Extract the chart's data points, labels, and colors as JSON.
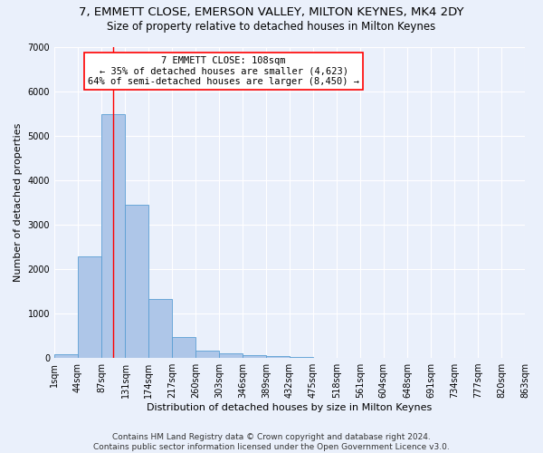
{
  "title": "7, EMMETT CLOSE, EMERSON VALLEY, MILTON KEYNES, MK4 2DY",
  "subtitle": "Size of property relative to detached houses in Milton Keynes",
  "xlabel": "Distribution of detached houses by size in Milton Keynes",
  "ylabel": "Number of detached properties",
  "footer_line1": "Contains HM Land Registry data © Crown copyright and database right 2024.",
  "footer_line2": "Contains public sector information licensed under the Open Government Licence v3.0.",
  "annotation_title": "7 EMMETT CLOSE: 108sqm",
  "annotation_line1": "← 35% of detached houses are smaller (4,623)",
  "annotation_line2": "64% of semi-detached houses are larger (8,450) →",
  "bar_left_edges": [
    1,
    44,
    87,
    131,
    174,
    217,
    260,
    303,
    346,
    389,
    432,
    475,
    518,
    561,
    604,
    648,
    691,
    734,
    777,
    820
  ],
  "bar_heights": [
    75,
    2280,
    5480,
    3450,
    1320,
    470,
    160,
    95,
    60,
    35,
    18,
    10,
    6,
    4,
    2,
    1,
    1,
    1,
    0,
    0
  ],
  "bin_width": 43,
  "bar_color": "#aec6e8",
  "bar_edge_color": "#5a9fd4",
  "vline_x": 108,
  "vline_color": "red",
  "ylim": [
    0,
    7000
  ],
  "yticks": [
    0,
    1000,
    2000,
    3000,
    4000,
    5000,
    6000,
    7000
  ],
  "xtick_labels": [
    "1sqm",
    "44sqm",
    "87sqm",
    "131sqm",
    "174sqm",
    "217sqm",
    "260sqm",
    "303sqm",
    "346sqm",
    "389sqm",
    "432sqm",
    "475sqm",
    "518sqm",
    "561sqm",
    "604sqm",
    "648sqm",
    "691sqm",
    "734sqm",
    "777sqm",
    "820sqm",
    "863sqm"
  ],
  "bg_color": "#eaf0fb",
  "grid_color": "#ffffff",
  "title_fontsize": 9.5,
  "subtitle_fontsize": 8.5,
  "axis_label_fontsize": 8,
  "tick_fontsize": 7,
  "footer_fontsize": 6.5,
  "annotation_fontsize": 7.5
}
